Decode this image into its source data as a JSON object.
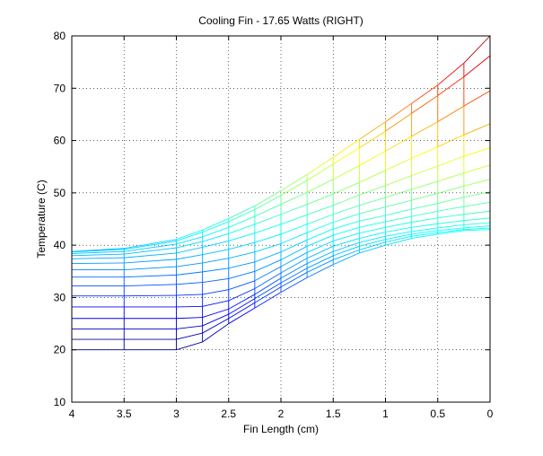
{
  "chart_data": {
    "type": "line",
    "title": "Cooling Fin - 17.65 Watts (RIGHT)",
    "xlabel": "Fin Length (cm)",
    "ylabel": "Temperature (C)",
    "xlim": [
      4,
      0
    ],
    "ylim": [
      10,
      80
    ],
    "x_reversed": true,
    "grid": true,
    "grid_style": "dotted",
    "legend": "none",
    "colormap": "jet",
    "xticks": [
      4,
      3.5,
      3,
      2.5,
      2,
      1.5,
      1,
      0.5,
      0
    ],
    "xtick_labels": [
      "4",
      "3.5",
      "3",
      "2.5",
      "2",
      "1.5",
      "1",
      "0.5",
      "0"
    ],
    "yticks": [
      10,
      20,
      30,
      40,
      50,
      60,
      70,
      80
    ],
    "ytick_labels": [
      "10",
      "20",
      "30",
      "40",
      "50",
      "60",
      "70",
      "80"
    ],
    "x": [
      4.0,
      3.5,
      3.0,
      2.75,
      2.5,
      2.25,
      2.0,
      1.75,
      1.5,
      1.25,
      1.0,
      0.75,
      0.5,
      0.25,
      0.0
    ],
    "series": [
      {
        "values": [
          20.0,
          20.0,
          20.0,
          21.5,
          25.0,
          28.0,
          31.0,
          33.8,
          36.3,
          38.5,
          40.0,
          41.3,
          42.1,
          42.8,
          43.0
        ]
      },
      {
        "values": [
          22.0,
          22.0,
          22.0,
          23.2,
          26.0,
          29.0,
          32.0,
          34.8,
          37.2,
          39.1,
          40.6,
          41.7,
          42.4,
          43.0,
          43.3
        ]
      },
      {
        "values": [
          24.0,
          24.0,
          24.0,
          24.6,
          26.8,
          29.8,
          32.8,
          35.6,
          38.0,
          39.8,
          41.1,
          42.1,
          42.8,
          43.3,
          43.7
        ]
      },
      {
        "values": [
          26.0,
          26.0,
          26.0,
          26.2,
          27.8,
          30.6,
          33.7,
          36.5,
          38.8,
          40.5,
          41.7,
          42.6,
          43.3,
          43.9,
          44.3
        ]
      },
      {
        "values": [
          28.2,
          28.2,
          28.2,
          28.3,
          29.4,
          31.7,
          34.7,
          37.5,
          39.8,
          41.3,
          42.5,
          43.4,
          44.1,
          44.7,
          45.2
        ]
      },
      {
        "values": [
          30.3,
          30.3,
          30.4,
          30.6,
          31.5,
          33.2,
          35.9,
          38.6,
          40.8,
          42.3,
          43.4,
          44.4,
          45.2,
          45.9,
          46.5
        ]
      },
      {
        "values": [
          32.2,
          32.2,
          32.5,
          32.9,
          33.6,
          35.0,
          37.2,
          39.8,
          41.9,
          43.4,
          44.5,
          45.5,
          46.5,
          47.4,
          48.2
        ]
      },
      {
        "values": [
          33.9,
          33.9,
          34.3,
          34.9,
          35.6,
          36.8,
          38.7,
          41.0,
          43.1,
          44.6,
          45.7,
          46.9,
          48.0,
          49.2,
          50.2
        ]
      },
      {
        "values": [
          35.3,
          35.3,
          35.9,
          36.6,
          37.5,
          38.7,
          40.3,
          42.4,
          44.4,
          46.0,
          47.3,
          48.6,
          49.9,
          51.3,
          52.6
        ]
      },
      {
        "values": [
          36.5,
          36.6,
          37.3,
          38.2,
          39.2,
          40.5,
          42.1,
          44.0,
          45.9,
          47.6,
          49.1,
          50.7,
          52.2,
          53.8,
          55.3
        ]
      },
      {
        "values": [
          37.4,
          37.6,
          38.5,
          39.6,
          40.8,
          42.3,
          44.0,
          45.8,
          47.6,
          49.6,
          51.4,
          53.3,
          55.1,
          57.0,
          58.6
        ]
      },
      {
        "values": [
          38.0,
          38.3,
          39.5,
          40.7,
          42.2,
          44.0,
          45.9,
          47.8,
          49.8,
          52.0,
          54.3,
          56.6,
          58.8,
          61.1,
          63.2
        ]
      },
      {
        "values": [
          38.4,
          38.8,
          40.2,
          41.6,
          43.4,
          45.5,
          47.8,
          50.1,
          52.6,
          55.2,
          58.0,
          60.8,
          63.6,
          66.6,
          69.5
        ]
      },
      {
        "values": [
          38.7,
          39.2,
          40.8,
          42.5,
          44.5,
          46.8,
          49.5,
          52.4,
          55.5,
          58.6,
          61.8,
          65.2,
          68.6,
          72.2,
          76.2
        ]
      },
      {
        "values": [
          38.8,
          39.4,
          41.1,
          42.9,
          45.1,
          47.5,
          50.4,
          53.5,
          56.8,
          60.2,
          63.6,
          67.1,
          70.6,
          74.8,
          80.0
        ]
      }
    ]
  }
}
